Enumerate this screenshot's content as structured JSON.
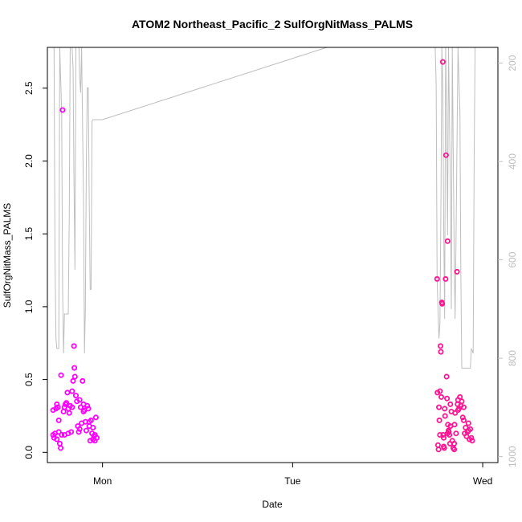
{
  "chart_data": {
    "type": "scatter",
    "title": "ATOM2 Northeast_Pacific_2 SulfOrgNitMass_PALMS",
    "xlabel": "Date",
    "ylabel": "SulfOrgNitMass_PALMS",
    "x_ticks": [
      "Mon",
      "Tue",
      "Wed"
    ],
    "xlim_days": [
      -0.29,
      2.08
    ],
    "ylim": [
      -0.07,
      2.78
    ],
    "y_ticks": [
      0.0,
      0.5,
      1.0,
      1.5,
      2.0,
      2.5
    ],
    "y_tick_labels": [
      "0.0",
      "0.5",
      "1.0",
      "1.5",
      "2.0",
      "2.5"
    ],
    "y2_ticks": [
      200,
      400,
      600,
      800,
      1000
    ],
    "y2_tick_labels": [
      "200",
      "400",
      "600",
      "800",
      "1000"
    ],
    "y2lim": [
      1012,
      168
    ],
    "grid": false,
    "colors": {
      "pressure_line": "#bebebe",
      "series_magenta": "#ff00ff",
      "series_pink": "#ff1493",
      "axis": "#000000",
      "right_axis": "#bebebe"
    },
    "series": [
      {
        "color": "magenta",
        "points": [
          [
            -0.26,
            0.29
          ],
          [
            -0.255,
            0.1
          ],
          [
            -0.25,
            0.13
          ],
          [
            -0.245,
            0.3
          ],
          [
            -0.24,
            0.33
          ],
          [
            -0.235,
            0.31
          ],
          [
            -0.23,
            0.22
          ],
          [
            -0.225,
            0.06
          ],
          [
            -0.22,
            0.03
          ],
          [
            -0.218,
            0.53
          ],
          [
            -0.215,
            0.12
          ],
          [
            -0.21,
            2.35
          ],
          [
            -0.205,
            0.28
          ],
          [
            -0.2,
            0.31
          ],
          [
            -0.195,
            0.33
          ],
          [
            -0.19,
            0.34
          ],
          [
            -0.185,
            0.41
          ],
          [
            -0.18,
            0.3
          ],
          [
            -0.175,
            0.27
          ],
          [
            -0.17,
            0.32
          ],
          [
            -0.165,
            0.14
          ],
          [
            -0.16,
            0.42
          ],
          [
            -0.155,
            0.49
          ],
          [
            -0.15,
            0.73
          ],
          [
            -0.148,
            0.58
          ],
          [
            -0.145,
            0.52
          ],
          [
            -0.14,
            0.39
          ],
          [
            -0.135,
            0.35
          ],
          [
            -0.13,
            0.18
          ],
          [
            -0.125,
            0.14
          ],
          [
            -0.12,
            0.36
          ],
          [
            -0.115,
            0.31
          ],
          [
            -0.11,
            0.2
          ],
          [
            -0.105,
            0.49
          ],
          [
            -0.1,
            0.33
          ],
          [
            -0.095,
            0.29
          ],
          [
            -0.09,
            0.21
          ],
          [
            -0.085,
            0.15
          ],
          [
            -0.08,
            0.32
          ],
          [
            -0.075,
            0.3
          ],
          [
            -0.07,
            0.18
          ],
          [
            -0.065,
            0.08
          ],
          [
            -0.06,
            0.22
          ],
          [
            -0.055,
            0.13
          ],
          [
            -0.05,
            0.09
          ],
          [
            -0.045,
            0.11
          ],
          [
            -0.04,
            0.12
          ],
          [
            -0.035,
            0.24
          ],
          [
            -0.03,
            0.1
          ],
          [
            -0.26,
            0.12
          ],
          [
            -0.23,
            0.14
          ],
          [
            -0.2,
            0.12
          ],
          [
            -0.18,
            0.13
          ],
          [
            -0.12,
            0.16
          ],
          [
            -0.1,
            0.28
          ],
          [
            -0.07,
            0.21
          ],
          [
            -0.05,
            0.17
          ],
          [
            -0.04,
            0.08
          ],
          [
            -0.24,
            0.09
          ],
          [
            -0.16,
            0.31
          ]
        ]
      },
      {
        "color": "pink",
        "points": [
          [
            1.76,
            1.19
          ],
          [
            1.762,
            0.41
          ],
          [
            1.765,
            0.05
          ],
          [
            1.768,
            0.02
          ],
          [
            1.77,
            0.31
          ],
          [
            1.772,
            0.22
          ],
          [
            1.775,
            0.42
          ],
          [
            1.778,
            0.73
          ],
          [
            1.78,
            0.69
          ],
          [
            1.782,
            0.38
          ],
          [
            1.785,
            1.03
          ],
          [
            1.787,
            1.02
          ],
          [
            1.79,
            2.68
          ],
          [
            1.792,
            0.12
          ],
          [
            1.795,
            0.04
          ],
          [
            1.798,
            0.03
          ],
          [
            1.8,
            0.3
          ],
          [
            1.802,
            0.25
          ],
          [
            1.805,
            1.19
          ],
          [
            1.807,
            2.04
          ],
          [
            1.81,
            0.52
          ],
          [
            1.812,
            0.37
          ],
          [
            1.815,
            1.45
          ],
          [
            1.817,
            0.19
          ],
          [
            1.82,
            0.15
          ],
          [
            1.822,
            0.14
          ],
          [
            1.825,
            0.12
          ],
          [
            1.828,
            0.06
          ],
          [
            1.83,
            0.33
          ],
          [
            1.835,
            0.28
          ],
          [
            1.84,
            0.08
          ],
          [
            1.845,
            0.03
          ],
          [
            1.85,
            0.02
          ],
          [
            1.852,
            0.19
          ],
          [
            1.855,
            0.27
          ],
          [
            1.86,
            0.13
          ],
          [
            1.865,
            1.24
          ],
          [
            1.868,
            0.33
          ],
          [
            1.87,
            0.36
          ],
          [
            1.875,
            0.3
          ],
          [
            1.88,
            0.38
          ],
          [
            1.885,
            0.32
          ],
          [
            1.89,
            0.35
          ],
          [
            1.895,
            0.24
          ],
          [
            1.9,
            0.22
          ],
          [
            1.905,
            0.13
          ],
          [
            1.91,
            0.17
          ],
          [
            1.915,
            0.11
          ],
          [
            1.92,
            0.14
          ],
          [
            1.925,
            0.2
          ],
          [
            1.93,
            0.09
          ],
          [
            1.935,
            0.16
          ],
          [
            1.94,
            0.1
          ],
          [
            1.945,
            0.08
          ],
          [
            1.795,
            0.1
          ],
          [
            1.815,
            0.13
          ],
          [
            1.83,
            0.18
          ],
          [
            1.85,
            0.06
          ],
          [
            1.87,
            0.29
          ],
          [
            1.9,
            0.31
          ],
          [
            1.925,
            0.15
          ],
          [
            1.775,
            0.12
          ]
        ]
      }
    ],
    "pressure_line": {
      "values_y2": [
        [
          -0.255,
          168
        ],
        [
          -0.25,
          600
        ],
        [
          -0.245,
          760
        ],
        [
          -0.24,
          780
        ],
        [
          -0.23,
          780
        ],
        [
          -0.225,
          168
        ],
        [
          -0.215,
          300
        ],
        [
          -0.21,
          650
        ],
        [
          -0.205,
          790
        ],
        [
          -0.2,
          710
        ],
        [
          -0.19,
          710
        ],
        [
          -0.18,
          710
        ],
        [
          -0.175,
          520
        ],
        [
          -0.17,
          168
        ],
        [
          -0.16,
          168
        ],
        [
          -0.155,
          210
        ],
        [
          -0.15,
          430
        ],
        [
          -0.145,
          620
        ],
        [
          -0.14,
          168
        ],
        [
          -0.13,
          168
        ],
        [
          -0.125,
          150
        ],
        [
          -0.12,
          230
        ],
        [
          -0.115,
          260
        ],
        [
          -0.11,
          168
        ],
        [
          -0.1,
          480
        ],
        [
          -0.095,
          790
        ],
        [
          -0.09,
          700
        ],
        [
          -0.085,
          400
        ],
        [
          -0.08,
          250
        ],
        [
          -0.075,
          250
        ],
        [
          -0.07,
          480
        ],
        [
          -0.065,
          660
        ],
        [
          -0.06,
          660
        ],
        [
          -0.055,
          318
        ],
        [
          -0.05,
          315
        ],
        [
          0.0,
          315
        ],
        [
          1.18,
          168
        ],
        [
          1.75,
          168
        ],
        [
          1.755,
          240
        ],
        [
          1.76,
          640
        ],
        [
          1.765,
          700
        ],
        [
          1.77,
          760
        ],
        [
          1.775,
          730
        ],
        [
          1.78,
          500
        ],
        [
          1.785,
          168
        ],
        [
          1.79,
          250
        ],
        [
          1.795,
          530
        ],
        [
          1.8,
          720
        ],
        [
          1.805,
          168
        ],
        [
          1.81,
          300
        ],
        [
          1.815,
          550
        ],
        [
          1.82,
          168
        ],
        [
          1.83,
          450
        ],
        [
          1.835,
          700
        ],
        [
          1.84,
          168
        ],
        [
          1.85,
          600
        ],
        [
          1.855,
          720
        ],
        [
          1.86,
          550
        ],
        [
          1.87,
          168
        ],
        [
          1.88,
          300
        ],
        [
          1.885,
          620
        ],
        [
          1.89,
          820
        ],
        [
          1.895,
          820
        ],
        [
          1.935,
          820
        ],
        [
          1.94,
          780
        ],
        [
          1.95,
          790
        ],
        [
          1.955,
          400
        ],
        [
          1.96,
          168
        ]
      ]
    }
  }
}
